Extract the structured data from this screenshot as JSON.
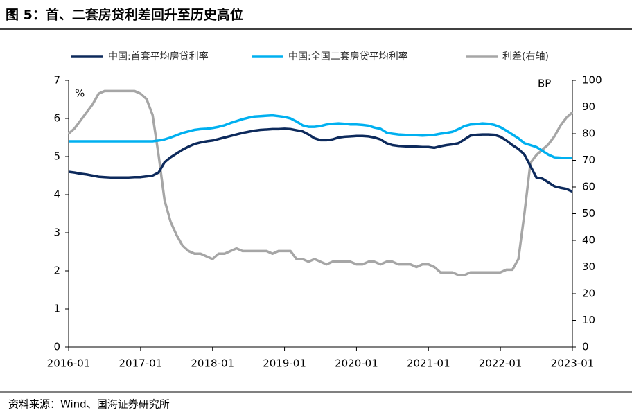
{
  "title": "图 5：首、二套房贷利差回升至历史高位",
  "source": "资料来源：Wind、国海证券研究所",
  "chart_data": {
    "type": "line",
    "y_unit": "%",
    "y2_unit": "BP",
    "x": [
      "2016-01",
      "2016-02",
      "2016-03",
      "2016-04",
      "2016-05",
      "2016-06",
      "2016-07",
      "2016-08",
      "2016-09",
      "2016-10",
      "2016-11",
      "2016-12",
      "2017-01",
      "2017-02",
      "2017-03",
      "2017-04",
      "2017-05",
      "2017-06",
      "2017-07",
      "2017-08",
      "2017-09",
      "2017-10",
      "2017-11",
      "2017-12",
      "2018-01",
      "2018-02",
      "2018-03",
      "2018-04",
      "2018-05",
      "2018-06",
      "2018-07",
      "2018-08",
      "2018-09",
      "2018-10",
      "2018-11",
      "2018-12",
      "2019-01",
      "2019-02",
      "2019-03",
      "2019-04",
      "2019-05",
      "2019-06",
      "2019-07",
      "2019-08",
      "2019-09",
      "2019-10",
      "2019-11",
      "2019-12",
      "2020-01",
      "2020-02",
      "2020-03",
      "2020-04",
      "2020-05",
      "2020-06",
      "2020-07",
      "2020-08",
      "2020-09",
      "2020-10",
      "2020-11",
      "2020-12",
      "2021-01",
      "2021-02",
      "2021-03",
      "2021-04",
      "2021-05",
      "2021-06",
      "2021-07",
      "2021-08",
      "2021-09",
      "2021-10",
      "2021-11",
      "2021-12",
      "2022-01",
      "2022-02",
      "2022-03",
      "2022-04",
      "2022-05",
      "2022-06",
      "2022-07",
      "2022-08",
      "2022-09",
      "2022-10",
      "2022-11",
      "2022-12",
      "2023-01"
    ],
    "xticks": [
      "2016-01",
      "2017-01",
      "2018-01",
      "2019-01",
      "2020-01",
      "2021-01",
      "2022-01",
      "2023-01"
    ],
    "series": [
      {
        "name": "中国:首套平均房贷利率",
        "color": "#0d2a5c",
        "values": [
          4.6,
          4.58,
          4.55,
          4.53,
          4.5,
          4.47,
          4.46,
          4.45,
          4.45,
          4.45,
          4.45,
          4.46,
          4.46,
          4.48,
          4.5,
          4.58,
          4.85,
          4.98,
          5.08,
          5.18,
          5.26,
          5.33,
          5.37,
          5.4,
          5.42,
          5.46,
          5.5,
          5.54,
          5.58,
          5.62,
          5.65,
          5.68,
          5.7,
          5.71,
          5.72,
          5.72,
          5.73,
          5.72,
          5.69,
          5.66,
          5.58,
          5.48,
          5.43,
          5.43,
          5.45,
          5.5,
          5.52,
          5.53,
          5.54,
          5.54,
          5.53,
          5.5,
          5.45,
          5.35,
          5.3,
          5.28,
          5.27,
          5.26,
          5.26,
          5.25,
          5.25,
          5.23,
          5.27,
          5.3,
          5.32,
          5.35,
          5.45,
          5.55,
          5.57,
          5.58,
          5.58,
          5.57,
          5.52,
          5.42,
          5.3,
          5.2,
          5.05,
          4.75,
          4.45,
          4.42,
          4.32,
          4.22,
          4.18,
          4.15,
          4.08
        ]
      },
      {
        "name": "中国:全国二套房贷平均利率",
        "color": "#00b0f0",
        "values": [
          5.4,
          5.4,
          5.4,
          5.4,
          5.4,
          5.4,
          5.4,
          5.4,
          5.4,
          5.4,
          5.4,
          5.4,
          5.4,
          5.4,
          5.4,
          5.42,
          5.45,
          5.5,
          5.56,
          5.62,
          5.66,
          5.7,
          5.72,
          5.73,
          5.75,
          5.78,
          5.82,
          5.88,
          5.93,
          5.98,
          6.02,
          6.05,
          6.06,
          6.07,
          6.08,
          6.06,
          6.04,
          6.0,
          5.92,
          5.82,
          5.78,
          5.78,
          5.8,
          5.84,
          5.86,
          5.87,
          5.86,
          5.84,
          5.84,
          5.83,
          5.81,
          5.76,
          5.73,
          5.63,
          5.6,
          5.58,
          5.57,
          5.56,
          5.56,
          5.55,
          5.56,
          5.57,
          5.6,
          5.62,
          5.65,
          5.72,
          5.8,
          5.84,
          5.85,
          5.87,
          5.86,
          5.83,
          5.77,
          5.68,
          5.58,
          5.48,
          5.35,
          5.3,
          5.25,
          5.15,
          5.05,
          4.98,
          4.97,
          4.96,
          4.96
        ]
      },
      {
        "name": "利差(右轴)",
        "color": "#a6a6a6",
        "axis": "y2",
        "values": [
          80,
          82,
          85,
          88,
          91,
          95,
          96,
          96,
          96,
          96,
          96,
          96,
          95,
          93,
          87,
          72,
          55,
          47,
          42,
          38,
          36,
          35,
          35,
          34,
          33,
          35,
          35,
          36,
          37,
          36,
          36,
          36,
          36,
          36,
          35,
          36,
          36,
          36,
          33,
          33,
          32,
          33,
          32,
          31,
          32,
          32,
          32,
          32,
          31,
          31,
          32,
          32,
          31,
          32,
          32,
          31,
          31,
          31,
          30,
          31,
          31,
          30,
          28,
          28,
          28,
          27,
          27,
          28,
          28,
          28,
          28,
          28,
          28,
          29,
          29,
          33,
          50,
          69,
          72,
          74,
          76,
          79,
          83,
          86,
          88
        ]
      }
    ],
    "ylim": [
      0,
      7
    ],
    "yticks": [
      0,
      1,
      2,
      3,
      4,
      5,
      6,
      7
    ],
    "y2lim": [
      0,
      100
    ],
    "y2ticks": [
      0,
      10,
      20,
      30,
      40,
      50,
      60,
      70,
      80,
      90,
      100
    ],
    "legend": "top"
  }
}
